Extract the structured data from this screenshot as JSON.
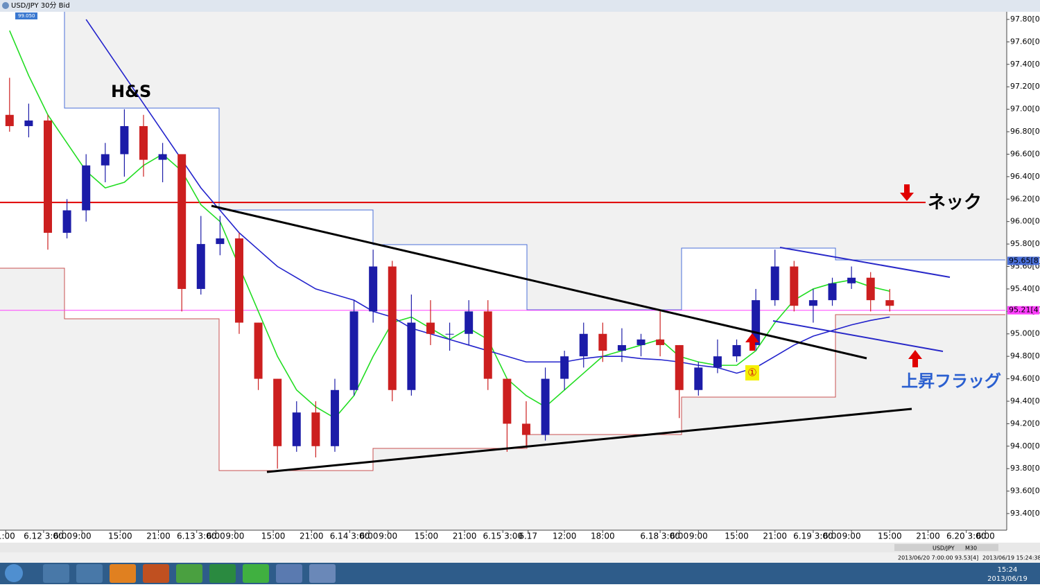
{
  "window": {
    "title": "USD/JPY 30分 Bid"
  },
  "chart_data": {
    "type": "candlestick",
    "price_tag": "99.050",
    "annotations": [
      "H&S",
      "ネック",
      "上昇フラッグ",
      "①"
    ],
    "up_color": "#1c1ca8",
    "down_color": "#cc1f1f",
    "x": [
      0,
      1,
      2,
      3,
      4,
      5,
      6,
      7,
      8,
      9,
      10,
      11,
      12,
      13,
      14,
      15,
      16,
      17,
      18,
      19,
      20,
      21,
      22,
      23,
      24,
      25,
      26,
      27,
      28,
      29,
      30,
      31,
      32,
      33,
      34,
      35,
      36,
      37,
      38,
      39,
      40,
      41,
      42,
      43,
      44,
      45,
      46
    ],
    "open": [
      96.95,
      96.85,
      96.9,
      95.9,
      96.1,
      96.5,
      96.6,
      96.85,
      96.55,
      96.6,
      95.4,
      95.8,
      95.85,
      95.1,
      94.6,
      94.0,
      94.3,
      94.0,
      94.5,
      95.2,
      95.6,
      94.5,
      95.1,
      95.0,
      95.0,
      95.2,
      94.6,
      94.2,
      94.1,
      94.6,
      94.8,
      95.0,
      94.85,
      94.9,
      94.95,
      94.9,
      94.5,
      94.7,
      94.8,
      94.9,
      95.3,
      95.6,
      95.25,
      95.3,
      95.45,
      95.5,
      95.3
    ],
    "high": [
      97.28,
      97.05,
      96.95,
      96.2,
      96.6,
      96.7,
      97.0,
      96.95,
      96.7,
      96.6,
      96.05,
      96.05,
      95.9,
      95.1,
      94.6,
      94.4,
      94.4,
      94.6,
      95.3,
      95.75,
      95.65,
      95.35,
      95.3,
      95.1,
      95.3,
      95.3,
      94.6,
      94.4,
      94.7,
      94.85,
      95.1,
      95.1,
      95.05,
      95.0,
      95.2,
      94.9,
      94.75,
      94.95,
      94.95,
      95.4,
      95.75,
      95.65,
      95.4,
      95.5,
      95.6,
      95.55,
      95.4
    ],
    "low": [
      96.8,
      96.75,
      95.75,
      95.85,
      96.0,
      96.35,
      96.4,
      96.4,
      96.35,
      95.2,
      95.35,
      95.7,
      95.0,
      94.5,
      93.8,
      93.95,
      93.9,
      93.95,
      94.45,
      95.1,
      94.4,
      94.45,
      94.9,
      94.85,
      94.9,
      94.5,
      93.95,
      94.0,
      94.05,
      94.5,
      94.7,
      94.75,
      94.75,
      94.8,
      94.8,
      94.25,
      94.45,
      94.65,
      94.75,
      94.85,
      95.25,
      95.2,
      95.1,
      95.25,
      95.4,
      95.2,
      95.2
    ],
    "close": [
      96.85,
      96.9,
      95.9,
      96.1,
      96.5,
      96.6,
      96.85,
      96.55,
      96.6,
      95.4,
      95.8,
      95.85,
      95.1,
      94.6,
      94.0,
      94.3,
      94.0,
      94.5,
      95.2,
      95.6,
      94.5,
      95.1,
      95.0,
      95.0,
      95.2,
      94.6,
      94.2,
      94.1,
      94.6,
      94.8,
      95.0,
      94.85,
      94.9,
      94.95,
      94.9,
      94.5,
      94.7,
      94.8,
      94.9,
      95.3,
      95.6,
      95.25,
      95.3,
      95.45,
      95.5,
      95.3,
      95.25
    ],
    "lines": [
      {
        "color": "#22dd22",
        "values": [
          97.7,
          97.3,
          96.95,
          96.7,
          96.45,
          96.3,
          96.35,
          96.5,
          96.6,
          96.45,
          96.15,
          96.0,
          95.6,
          95.2,
          94.8,
          94.5,
          94.35,
          94.25,
          94.45,
          94.8,
          95.1,
          95.15,
          95.05,
          94.95,
          95.05,
          94.95,
          94.6,
          94.45,
          94.35,
          94.5,
          94.65,
          94.8,
          94.85,
          94.9,
          94.95,
          94.8,
          94.75,
          94.72,
          94.72,
          94.85,
          95.1,
          95.3,
          95.4,
          95.45,
          95.48,
          95.42,
          95.38
        ]
      },
      {
        "color": "#2222cc",
        "values": [
          null,
          null,
          null,
          null,
          97.8,
          97.55,
          97.3,
          97.05,
          96.8,
          96.55,
          96.3,
          96.1,
          95.9,
          95.75,
          95.6,
          95.5,
          95.4,
          95.35,
          95.3,
          95.2,
          95.15,
          95.05,
          95.0,
          94.95,
          94.9,
          94.85,
          94.8,
          94.75,
          94.75,
          94.75,
          94.78,
          94.8,
          94.8,
          94.78,
          94.77,
          94.75,
          94.72,
          94.7,
          94.65,
          94.7,
          94.8,
          94.9,
          94.98,
          95.03,
          95.08,
          95.12,
          95.15
        ]
      }
    ],
    "hlines": [
      {
        "value": 96.17,
        "color": "#e00000"
      },
      {
        "value": 95.21,
        "color": "#ff40ff",
        "label": "95.21[4]"
      },
      {
        "value": 95.65,
        "color": "#4a6fd8",
        "label": "95.65[8]"
      }
    ],
    "xlim": [
      -0.5,
      52.04
    ],
    "ylim": [
      93.252,
      97.868
    ],
    "yticks": [
      {
        "value": 93.4,
        "label": "93.40[0]"
      },
      {
        "value": 93.6,
        "label": "93.60[0]"
      },
      {
        "value": 93.8,
        "label": "93.80[0]"
      },
      {
        "value": 94.0,
        "label": "94.00[0]"
      },
      {
        "value": 94.2,
        "label": "94.20[0]"
      },
      {
        "value": 94.4,
        "label": "94.40[0]"
      },
      {
        "value": 94.6,
        "label": "94.60[0]"
      },
      {
        "value": 94.8,
        "label": "94.80[0]"
      },
      {
        "value": 95.0,
        "label": "95.00[0]"
      },
      {
        "value": 95.2,
        "label": "95.20[0]"
      },
      {
        "value": 95.4,
        "label": "95.40[0]"
      },
      {
        "value": 95.6,
        "label": "95.60[0]"
      },
      {
        "value": 95.8,
        "label": "95.80[0]"
      },
      {
        "value": 96.0,
        "label": "96.00[0]"
      },
      {
        "value": 96.2,
        "label": "96.20[0]"
      },
      {
        "value": 96.4,
        "label": "96.40[0]"
      },
      {
        "value": 96.6,
        "label": "96.60[0]"
      },
      {
        "value": 96.8,
        "label": "96.80[0]"
      },
      {
        "value": 97.0,
        "label": "97.00[0]"
      },
      {
        "value": 97.2,
        "label": "97.20[0]"
      },
      {
        "value": 97.4,
        "label": "97.40[0]"
      },
      {
        "value": 97.6,
        "label": "97.60[0]"
      },
      {
        "value": 97.8,
        "label": "97.80[0]"
      }
    ],
    "xticks": [
      {
        "value": -0.2,
        "label": "1:00"
      },
      {
        "value": 1.78,
        "label": "6.12 3:00"
      },
      {
        "value": 2.78,
        "label": "6:00"
      },
      {
        "value": 3.78,
        "label": "9:00"
      },
      {
        "value": 5.78,
        "label": "15:00"
      },
      {
        "value": 7.78,
        "label": "21:00"
      },
      {
        "value": 9.78,
        "label": "6.13 3:00"
      },
      {
        "value": 10.78,
        "label": "6:00"
      },
      {
        "value": 11.78,
        "label": "9:00"
      },
      {
        "value": 13.78,
        "label": "15:00"
      },
      {
        "value": 15.78,
        "label": "21:00"
      },
      {
        "value": 17.78,
        "label": "6.14 3:00"
      },
      {
        "value": 18.78,
        "label": "6:00"
      },
      {
        "value": 19.78,
        "label": "9:00"
      },
      {
        "value": 21.78,
        "label": "15:00"
      },
      {
        "value": 23.78,
        "label": "21:00"
      },
      {
        "value": 25.78,
        "label": "6.15 3:00"
      },
      {
        "value": 27.1,
        "label": "6.17"
      },
      {
        "value": 29,
        "label": "12:00"
      },
      {
        "value": 31,
        "label": "18:00"
      },
      {
        "value": 34,
        "label": "6.18 3:00"
      },
      {
        "value": 35,
        "label": "6:00"
      },
      {
        "value": 36,
        "label": "9:00"
      },
      {
        "value": 38,
        "label": "15:00"
      },
      {
        "value": 40,
        "label": "21:00"
      },
      {
        "value": 42,
        "label": "6.19 3:00"
      },
      {
        "value": 43,
        "label": "6:00"
      },
      {
        "value": 44,
        "label": "9:00"
      },
      {
        "value": 46,
        "label": "15:00"
      },
      {
        "value": 48,
        "label": "21:00"
      },
      {
        "value": 50,
        "label": "6.20 3:00"
      },
      {
        "value": 51,
        "label": "6:00"
      }
    ]
  },
  "status_bar": {
    "symbol": "USD/JPY",
    "timeframe": "M30",
    "cursor": "2013/06/20 7:00:00 93.53[4]",
    "time": "2013/06/19 15:24:38"
  },
  "taskbar": {
    "time": "15:24",
    "date": "2013/06/19"
  }
}
